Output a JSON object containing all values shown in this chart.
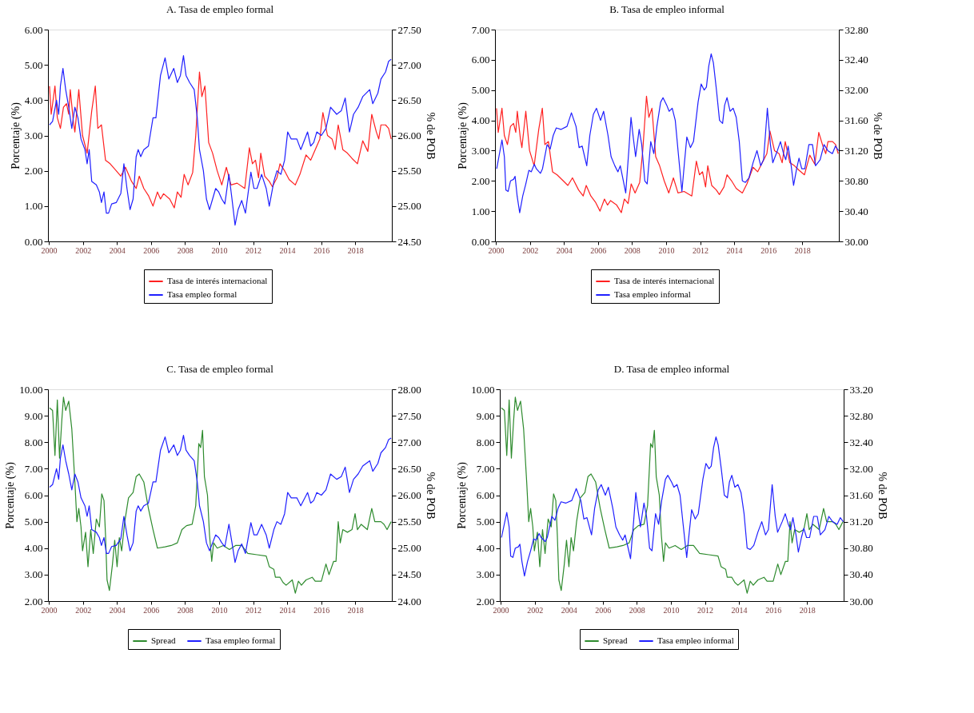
{
  "chart_data": [
    {
      "type": "line",
      "title": "A. Tasa de empleo formal",
      "ylabel": "Porcentaje (%)",
      "y2label": "% de POB",
      "legend": "bottom",
      "xlim": [
        1999.95,
        2020.15
      ],
      "xticks": [
        2000,
        2002,
        2004,
        2006,
        2008,
        2010,
        2012,
        2014,
        2016,
        2018
      ],
      "ylim": [
        0,
        6
      ],
      "yticks": [
        {
          "value": 0,
          "label": "0.00"
        },
        {
          "value": 1,
          "label": "1.00"
        },
        {
          "value": 2,
          "label": "2.00"
        },
        {
          "value": 3,
          "label": "3.00"
        },
        {
          "value": 4,
          "label": "4.00"
        },
        {
          "value": 5,
          "label": "5.00"
        },
        {
          "value": 6,
          "label": "6.00"
        }
      ],
      "y2lim": [
        24.5,
        27.5
      ],
      "y2ticks": [
        {
          "value": 24.5,
          "label": "24.50"
        },
        {
          "value": 25,
          "label": "25.00"
        },
        {
          "value": 25.5,
          "label": "25.50"
        },
        {
          "value": 26,
          "label": "26.00"
        },
        {
          "value": 26.5,
          "label": "26.50"
        },
        {
          "value": 27,
          "label": "27.00"
        },
        {
          "value": 27.5,
          "label": "27.50"
        }
      ],
      "series": [
        {
          "name": "Tasa de interés internacional",
          "color": "#ff2020",
          "axis": "y",
          "x": [
            2000.04,
            2000.14,
            2000.36,
            2000.5,
            2000.68,
            2000.86,
            2001.04,
            2001.17,
            2001.26,
            2001.44,
            2001.53,
            2001.76,
            2001.98,
            2002.25,
            2002.52,
            2002.73,
            2002.88,
            2003.09,
            2003.33,
            2003.6,
            2003.96,
            2004.23,
            2004.5,
            2004.86,
            2005.13,
            2005.31,
            2005.58,
            2005.85,
            2006.12,
            2006.38,
            2006.56,
            2006.74,
            2007.1,
            2007.37,
            2007.55,
            2007.77,
            2007.95,
            2008.18,
            2008.45,
            2008.63,
            2008.85,
            2008.99,
            2009.17,
            2009.39,
            2009.62,
            2009.89,
            2010.16,
            2010.43,
            2010.7,
            2011.06,
            2011.51,
            2011.78,
            2011.96,
            2012.14,
            2012.32,
            2012.45,
            2012.68,
            2012.95,
            2013.13,
            2013.4,
            2013.58,
            2013.85,
            2014.12,
            2014.48,
            2014.75,
            2015.11,
            2015.38,
            2015.65,
            2015.92,
            2016.1,
            2016.37,
            2016.64,
            2016.82,
            2017.0,
            2017.27,
            2017.54,
            2017.81,
            2018.13,
            2018.44,
            2018.74,
            2018.97,
            2019.24,
            2019.38,
            2019.51,
            2019.78,
            2019.96,
            2020.11
          ],
          "values": [
            4.4,
            3.6,
            4.4,
            3.5,
            3.2,
            3.8,
            3.9,
            3.6,
            4.3,
            3.4,
            3.1,
            4.3,
            3.0,
            2.5,
            3.7,
            4.4,
            3.2,
            3.3,
            2.3,
            2.2,
            2.0,
            1.85,
            2.1,
            1.7,
            1.5,
            1.85,
            1.5,
            1.3,
            1.0,
            1.4,
            1.2,
            1.35,
            1.2,
            0.95,
            1.4,
            1.25,
            1.9,
            1.6,
            1.95,
            3.0,
            4.8,
            4.1,
            4.4,
            2.8,
            2.5,
            2.0,
            1.6,
            2.1,
            1.6,
            1.65,
            1.5,
            2.65,
            2.2,
            2.3,
            1.8,
            2.5,
            1.85,
            1.7,
            1.55,
            1.8,
            2.2,
            2.0,
            1.75,
            1.6,
            1.9,
            2.45,
            2.3,
            2.6,
            2.9,
            3.65,
            3.0,
            2.9,
            2.6,
            3.3,
            2.6,
            2.5,
            2.35,
            2.2,
            2.85,
            2.55,
            3.6,
            3.1,
            2.9,
            3.3,
            3.3,
            3.2,
            2.9
          ]
        },
        {
          "name": "Tasa empleo formal",
          "color": "#2020ff",
          "axis": "y2",
          "x": [
            2000.04,
            2000.22,
            2000.45,
            2000.58,
            2000.68,
            2000.83,
            2000.99,
            2001.17,
            2001.35,
            2001.53,
            2001.71,
            2001.89,
            2002.12,
            2002.25,
            2002.37,
            2002.52,
            2002.79,
            2002.97,
            2003.09,
            2003.24,
            2003.38,
            2003.51,
            2003.69,
            2003.96,
            2004.23,
            2004.41,
            2004.59,
            2004.77,
            2004.95,
            2005.13,
            2005.25,
            2005.4,
            2005.58,
            2005.85,
            2006.12,
            2006.29,
            2006.56,
            2006.83,
            2007.05,
            2007.34,
            2007.55,
            2007.73,
            2007.91,
            2008.06,
            2008.27,
            2008.54,
            2008.72,
            2008.85,
            2009.08,
            2009.26,
            2009.44,
            2009.62,
            2009.8,
            2009.98,
            2010.16,
            2010.34,
            2010.58,
            2010.76,
            2010.94,
            2011.12,
            2011.33,
            2011.55,
            2011.87,
            2012.05,
            2012.23,
            2012.5,
            2012.77,
            2012.95,
            2013.22,
            2013.4,
            2013.63,
            2013.85,
            2014.03,
            2014.24,
            2014.57,
            2014.8,
            2015.2,
            2015.38,
            2015.56,
            2015.74,
            2016.01,
            2016.28,
            2016.55,
            2016.91,
            2017.18,
            2017.41,
            2017.66,
            2017.9,
            2018.17,
            2018.44,
            2018.85,
            2019.03,
            2019.33,
            2019.51,
            2019.78,
            2019.96,
            2020.11
          ],
          "values": [
            26.15,
            26.2,
            26.5,
            26.3,
            26.7,
            26.95,
            26.65,
            26.4,
            26.1,
            26.4,
            26.25,
            25.95,
            25.8,
            25.6,
            25.8,
            25.35,
            25.3,
            25.2,
            25.05,
            25.2,
            24.9,
            24.9,
            25.03,
            25.05,
            25.18,
            25.6,
            25.25,
            24.95,
            25.1,
            25.7,
            25.8,
            25.7,
            25.8,
            25.85,
            26.25,
            26.25,
            26.85,
            27.1,
            26.8,
            26.95,
            26.75,
            26.85,
            27.13,
            26.85,
            26.75,
            26.65,
            26.25,
            25.8,
            25.5,
            25.1,
            24.95,
            25.1,
            25.25,
            25.2,
            25.1,
            25.03,
            25.45,
            25.1,
            24.73,
            24.95,
            25.08,
            24.9,
            25.48,
            25.25,
            25.25,
            25.45,
            25.25,
            25.0,
            25.35,
            25.5,
            25.45,
            25.65,
            26.05,
            25.95,
            25.95,
            25.8,
            26.05,
            25.85,
            25.9,
            26.05,
            26.0,
            26.1,
            26.4,
            26.3,
            26.35,
            26.53,
            26.05,
            26.3,
            26.4,
            26.55,
            26.65,
            26.45,
            26.6,
            26.8,
            26.9,
            27.05,
            27.08
          ]
        }
      ]
    },
    {
      "type": "line",
      "title": "B. Tasa de empleo informal",
      "ylabel": "Porcentaje (%)",
      "y2label": "% de POB",
      "legend": "bottom",
      "xlim": [
        1999.95,
        2020.15
      ],
      "xticks": [
        2000,
        2002,
        2004,
        2006,
        2008,
        2010,
        2012,
        2014,
        2016,
        2018
      ],
      "ylim": [
        0,
        7
      ],
      "yticks": [
        {
          "value": 0,
          "label": "0.00"
        },
        {
          "value": 1,
          "label": "1.00"
        },
        {
          "value": 2,
          "label": "2.00"
        },
        {
          "value": 3,
          "label": "3.00"
        },
        {
          "value": 4,
          "label": "4.00"
        },
        {
          "value": 5,
          "label": "5.00"
        },
        {
          "value": 6,
          "label": "6.00"
        },
        {
          "value": 7,
          "label": "7.00"
        }
      ],
      "y2lim": [
        30,
        32.8
      ],
      "y2ticks": [
        {
          "value": 30,
          "label": "30.00"
        },
        {
          "value": 30.4,
          "label": "30.40"
        },
        {
          "value": 30.8,
          "label": "30.80"
        },
        {
          "value": 31.2,
          "label": "31.20"
        },
        {
          "value": 31.6,
          "label": "31.60"
        },
        {
          "value": 32,
          "label": "32.00"
        },
        {
          "value": 32.4,
          "label": "32.40"
        },
        {
          "value": 32.8,
          "label": "32.80"
        }
      ],
      "series": [
        {
          "name": "Tasa de interés internacional",
          "color": "#ff2020",
          "axis": "y",
          "x": [
            2000.04,
            2000.14,
            2000.36,
            2000.5,
            2000.68,
            2000.86,
            2001.04,
            2001.17,
            2001.26,
            2001.44,
            2001.53,
            2001.76,
            2001.98,
            2002.25,
            2002.52,
            2002.73,
            2002.88,
            2003.09,
            2003.33,
            2003.6,
            2003.96,
            2004.23,
            2004.5,
            2004.86,
            2005.13,
            2005.31,
            2005.58,
            2005.85,
            2006.12,
            2006.38,
            2006.56,
            2006.74,
            2007.1,
            2007.37,
            2007.55,
            2007.77,
            2007.95,
            2008.18,
            2008.45,
            2008.63,
            2008.85,
            2008.99,
            2009.17,
            2009.39,
            2009.62,
            2009.89,
            2010.16,
            2010.43,
            2010.7,
            2011.06,
            2011.51,
            2011.78,
            2011.96,
            2012.14,
            2012.32,
            2012.45,
            2012.68,
            2012.95,
            2013.13,
            2013.4,
            2013.58,
            2013.85,
            2014.12,
            2014.48,
            2014.75,
            2015.11,
            2015.38,
            2015.65,
            2015.92,
            2016.1,
            2016.37,
            2016.64,
            2016.82,
            2017.0,
            2017.27,
            2017.54,
            2017.81,
            2018.13,
            2018.44,
            2018.74,
            2018.97,
            2019.24,
            2019.38,
            2019.51,
            2019.78,
            2019.96,
            2020.11
          ],
          "values": [
            4.4,
            3.6,
            4.4,
            3.5,
            3.2,
            3.8,
            3.9,
            3.6,
            4.3,
            3.4,
            3.1,
            4.3,
            3.0,
            2.5,
            3.7,
            4.4,
            3.2,
            3.3,
            2.3,
            2.2,
            2.0,
            1.85,
            2.1,
            1.7,
            1.5,
            1.85,
            1.5,
            1.3,
            1.0,
            1.4,
            1.2,
            1.35,
            1.2,
            0.95,
            1.4,
            1.25,
            1.9,
            1.6,
            1.95,
            3.0,
            4.8,
            4.1,
            4.4,
            2.8,
            2.5,
            2.0,
            1.6,
            2.1,
            1.6,
            1.65,
            1.5,
            2.65,
            2.2,
            2.3,
            1.8,
            2.5,
            1.85,
            1.7,
            1.55,
            1.8,
            2.2,
            2.0,
            1.75,
            1.6,
            1.9,
            2.45,
            2.3,
            2.6,
            2.9,
            3.65,
            3.0,
            2.9,
            2.6,
            3.3,
            2.6,
            2.5,
            2.35,
            2.2,
            2.85,
            2.55,
            3.6,
            3.1,
            2.9,
            3.3,
            3.3,
            3.2,
            2.9
          ]
        },
        {
          "name": "Tasa empleo informal",
          "color": "#2020ff",
          "axis": "y2",
          "x": [
            2000.05,
            2000.18,
            2000.36,
            2000.5,
            2000.59,
            2000.72,
            2000.86,
            2001.04,
            2001.13,
            2001.25,
            2001.4,
            2001.58,
            2001.76,
            2001.94,
            2002.08,
            2002.26,
            2002.38,
            2002.62,
            2002.74,
            2003.01,
            2003.19,
            2003.37,
            2003.55,
            2003.82,
            2004.18,
            2004.44,
            2004.71,
            2004.89,
            2005.07,
            2005.34,
            2005.52,
            2005.73,
            2005.91,
            2006.15,
            2006.33,
            2006.59,
            2006.77,
            2006.99,
            2007.17,
            2007.31,
            2007.49,
            2007.63,
            2007.81,
            2007.94,
            2008.08,
            2008.21,
            2008.42,
            2008.57,
            2008.75,
            2008.89,
            2009.1,
            2009.28,
            2009.46,
            2009.68,
            2009.82,
            2010.04,
            2010.18,
            2010.36,
            2010.54,
            2010.72,
            2010.93,
            2011.08,
            2011.22,
            2011.43,
            2011.61,
            2011.88,
            2012.06,
            2012.24,
            2012.37,
            2012.51,
            2012.65,
            2012.78,
            2012.96,
            2013.14,
            2013.32,
            2013.44,
            2013.58,
            2013.76,
            2013.94,
            2014.12,
            2014.3,
            2014.48,
            2014.66,
            2014.87,
            2015.11,
            2015.34,
            2015.56,
            2015.73,
            2015.95,
            2016.13,
            2016.27,
            2016.54,
            2016.72,
            2016.9,
            2017.03,
            2017.17,
            2017.35,
            2017.49,
            2017.67,
            2017.81,
            2017.97,
            2018.15,
            2018.39,
            2018.6,
            2018.78,
            2019.05,
            2019.28,
            2019.5,
            2019.77,
            2019.95,
            2020.13
          ],
          "values": [
            30.96,
            31.12,
            31.34,
            31.12,
            30.68,
            30.66,
            30.8,
            30.82,
            30.86,
            30.6,
            30.38,
            30.6,
            30.76,
            30.94,
            30.92,
            31.02,
            30.96,
            30.9,
            30.96,
            31.28,
            31.22,
            31.4,
            31.5,
            31.48,
            31.52,
            31.7,
            31.52,
            31.24,
            31.26,
            31.0,
            31.4,
            31.68,
            31.76,
            31.6,
            31.72,
            31.4,
            31.12,
            31.0,
            30.92,
            31.0,
            30.8,
            30.64,
            31.2,
            31.64,
            31.36,
            31.12,
            31.48,
            31.28,
            30.8,
            30.76,
            31.32,
            31.16,
            31.52,
            31.84,
            31.9,
            31.8,
            31.72,
            31.76,
            31.6,
            31.16,
            30.66,
            31.04,
            31.38,
            31.24,
            31.32,
            31.84,
            32.08,
            32.0,
            32.04,
            32.32,
            32.48,
            32.36,
            32.0,
            31.6,
            31.56,
            31.8,
            31.9,
            31.72,
            31.76,
            31.64,
            31.32,
            30.8,
            30.78,
            30.84,
            31.04,
            31.2,
            31.0,
            31.08,
            31.76,
            31.28,
            31.04,
            31.2,
            31.32,
            31.16,
            31.08,
            31.26,
            31.0,
            30.74,
            30.96,
            31.1,
            30.96,
            30.96,
            31.28,
            31.28,
            31.0,
            31.08,
            31.28,
            31.2,
            31.16,
            31.26,
            31.2
          ]
        }
      ]
    },
    {
      "type": "line",
      "title": "C. Tasa de empleo formal",
      "ylabel": "Porcentaje (%)",
      "y2label": "% de POB",
      "legend": "bottom",
      "xlim": [
        1999.95,
        2020.15
      ],
      "xticks": [
        2000,
        2002,
        2004,
        2006,
        2008,
        2010,
        2012,
        2014,
        2016,
        2018
      ],
      "ylim": [
        2,
        10
      ],
      "yticks": [
        {
          "value": 2,
          "label": "2.00"
        },
        {
          "value": 3,
          "label": "3.00"
        },
        {
          "value": 4,
          "label": "4.00"
        },
        {
          "value": 5,
          "label": "5.00"
        },
        {
          "value": 6,
          "label": "6.00"
        },
        {
          "value": 7,
          "label": "7.00"
        },
        {
          "value": 8,
          "label": "8.00"
        },
        {
          "value": 9,
          "label": "9.00"
        },
        {
          "value": 10,
          "label": "10.00"
        }
      ],
      "y2lim": [
        24,
        28
      ],
      "y2ticks": [
        {
          "value": 24,
          "label": "24.00"
        },
        {
          "value": 24.5,
          "label": "24.50"
        },
        {
          "value": 25,
          "label": "25.00"
        },
        {
          "value": 25.5,
          "label": "25.50"
        },
        {
          "value": 26,
          "label": "26.00"
        },
        {
          "value": 26.5,
          "label": "26.50"
        },
        {
          "value": 27,
          "label": "27.00"
        },
        {
          "value": 27.5,
          "label": "27.50"
        },
        {
          "value": 28,
          "label": "28.00"
        }
      ],
      "series": [
        {
          "name": "Spread",
          "color": "#2e8b2e",
          "axis": "y",
          "x": [
            2000.04,
            2000.22,
            2000.36,
            2000.5,
            2000.63,
            2000.76,
            2000.86,
            2000.99,
            2001.17,
            2001.35,
            2001.53,
            2001.65,
            2001.76,
            2001.89,
            2001.98,
            2002.16,
            2002.3,
            2002.46,
            2002.61,
            2002.79,
            2002.97,
            2003.11,
            2003.24,
            2003.33,
            2003.42,
            2003.56,
            2003.74,
            2003.87,
            2004.01,
            2004.14,
            2004.28,
            2004.46,
            2004.68,
            2004.95,
            2005.13,
            2005.31,
            2005.58,
            2005.85,
            2006.12,
            2006.38,
            2006.83,
            2007.19,
            2007.55,
            2007.82,
            2008.09,
            2008.42,
            2008.63,
            2008.81,
            2008.92,
            2009.03,
            2009.14,
            2009.32,
            2009.44,
            2009.57,
            2009.68,
            2009.89,
            2010.25,
            2010.61,
            2010.97,
            2011.33,
            2011.69,
            2012.23,
            2012.77,
            2012.95,
            2013.22,
            2013.31,
            2013.58,
            2013.76,
            2013.94,
            2014.3,
            2014.48,
            2014.66,
            2014.84,
            2015.11,
            2015.47,
            2015.65,
            2016.01,
            2016.28,
            2016.46,
            2016.73,
            2016.87,
            2017.0,
            2017.12,
            2017.27,
            2017.54,
            2017.81,
            2017.99,
            2018.13,
            2018.35,
            2018.71,
            2018.97,
            2019.15,
            2019.51,
            2019.69,
            2019.87,
            2020.11
          ],
          "values": [
            9.3,
            9.2,
            7.5,
            9.6,
            7.4,
            8.8,
            9.7,
            9.2,
            9.55,
            8.5,
            6.5,
            5.0,
            5.5,
            4.8,
            3.9,
            4.6,
            3.3,
            4.7,
            3.8,
            5.1,
            4.8,
            6.05,
            5.8,
            4.5,
            2.8,
            2.4,
            3.4,
            4.3,
            3.3,
            4.4,
            3.9,
            5.0,
            5.9,
            6.1,
            6.7,
            6.8,
            6.5,
            5.5,
            4.7,
            4.0,
            4.05,
            4.1,
            4.2,
            4.7,
            4.85,
            4.9,
            5.6,
            7.95,
            7.8,
            8.45,
            6.7,
            6.0,
            4.5,
            3.5,
            4.2,
            4.0,
            4.1,
            3.95,
            4.1,
            4.1,
            3.8,
            3.75,
            3.7,
            3.3,
            3.2,
            2.9,
            2.9,
            2.7,
            2.6,
            2.8,
            2.3,
            2.75,
            2.6,
            2.8,
            2.9,
            2.75,
            2.75,
            3.4,
            3.0,
            3.5,
            3.5,
            5.0,
            4.2,
            4.7,
            4.6,
            4.7,
            5.3,
            4.7,
            4.9,
            4.7,
            5.5,
            5.0,
            5.0,
            4.9,
            4.7,
            5.0
          ]
        },
        {
          "name": "Tasa empleo formal",
          "color": "#2020ff",
          "axis": "y2",
          "x": [
            2000.04,
            2000.22,
            2000.45,
            2000.58,
            2000.68,
            2000.83,
            2000.99,
            2001.17,
            2001.35,
            2001.53,
            2001.71,
            2001.89,
            2002.12,
            2002.25,
            2002.37,
            2002.52,
            2002.79,
            2002.97,
            2003.09,
            2003.24,
            2003.38,
            2003.51,
            2003.69,
            2003.96,
            2004.23,
            2004.41,
            2004.59,
            2004.77,
            2004.95,
            2005.13,
            2005.25,
            2005.4,
            2005.58,
            2005.85,
            2006.12,
            2006.29,
            2006.56,
            2006.83,
            2007.05,
            2007.34,
            2007.55,
            2007.73,
            2007.91,
            2008.06,
            2008.27,
            2008.54,
            2008.72,
            2008.85,
            2009.08,
            2009.26,
            2009.44,
            2009.62,
            2009.8,
            2009.98,
            2010.16,
            2010.34,
            2010.58,
            2010.76,
            2010.94,
            2011.12,
            2011.33,
            2011.55,
            2011.87,
            2012.05,
            2012.23,
            2012.5,
            2012.77,
            2012.95,
            2013.22,
            2013.4,
            2013.63,
            2013.85,
            2014.03,
            2014.24,
            2014.57,
            2014.8,
            2015.2,
            2015.38,
            2015.56,
            2015.74,
            2016.01,
            2016.28,
            2016.55,
            2016.91,
            2017.18,
            2017.41,
            2017.66,
            2017.9,
            2018.17,
            2018.44,
            2018.85,
            2019.03,
            2019.33,
            2019.51,
            2019.78,
            2019.96,
            2020.11
          ],
          "values": [
            26.15,
            26.2,
            26.5,
            26.3,
            26.7,
            26.95,
            26.65,
            26.4,
            26.1,
            26.4,
            26.25,
            25.95,
            25.8,
            25.6,
            25.8,
            25.35,
            25.3,
            25.2,
            25.05,
            25.2,
            24.9,
            24.9,
            25.03,
            25.05,
            25.18,
            25.6,
            25.25,
            24.95,
            25.1,
            25.7,
            25.8,
            25.7,
            25.8,
            25.85,
            26.25,
            26.25,
            26.85,
            27.1,
            26.8,
            26.95,
            26.75,
            26.85,
            27.13,
            26.85,
            26.75,
            26.65,
            26.25,
            25.8,
            25.5,
            25.1,
            24.95,
            25.1,
            25.25,
            25.2,
            25.1,
            25.03,
            25.45,
            25.1,
            24.73,
            24.95,
            25.08,
            24.9,
            25.48,
            25.25,
            25.25,
            25.45,
            25.25,
            25.0,
            25.35,
            25.5,
            25.45,
            25.65,
            26.05,
            25.95,
            25.95,
            25.8,
            26.05,
            25.85,
            25.9,
            26.05,
            26.0,
            26.1,
            26.4,
            26.3,
            26.35,
            26.53,
            26.05,
            26.3,
            26.4,
            26.55,
            26.65,
            26.45,
            26.6,
            26.8,
            26.9,
            27.05,
            27.08
          ]
        }
      ]
    },
    {
      "type": "line",
      "title": "D. Tasa de empleo informal",
      "ylabel": "Porcentaje (%)",
      "y2label": "% de POB",
      "legend": "bottom",
      "xlim": [
        1999.95,
        2020.15
      ],
      "xticks": [
        2000,
        2002,
        2004,
        2006,
        2008,
        2010,
        2012,
        2014,
        2016,
        2018
      ],
      "ylim": [
        2,
        10
      ],
      "yticks": [
        {
          "value": 2,
          "label": "2.00"
        },
        {
          "value": 3,
          "label": "3.00"
        },
        {
          "value": 4,
          "label": "4.00"
        },
        {
          "value": 5,
          "label": "5.00"
        },
        {
          "value": 6,
          "label": "6.00"
        },
        {
          "value": 7,
          "label": "7.00"
        },
        {
          "value": 8,
          "label": "8.00"
        },
        {
          "value": 9,
          "label": "9.00"
        },
        {
          "value": 10,
          "label": "10.00"
        }
      ],
      "y2lim": [
        30,
        33.2
      ],
      "y2ticks": [
        {
          "value": 30,
          "label": "30.00"
        },
        {
          "value": 30.4,
          "label": "30.40"
        },
        {
          "value": 30.8,
          "label": "30.80"
        },
        {
          "value": 31.2,
          "label": "31.20"
        },
        {
          "value": 31.6,
          "label": "31.60"
        },
        {
          "value": 32,
          "label": "32.00"
        },
        {
          "value": 32.4,
          "label": "32.40"
        },
        {
          "value": 32.8,
          "label": "32.80"
        },
        {
          "value": 33.2,
          "label": "33.20"
        }
      ],
      "series": [
        {
          "name": "Spread",
          "color": "#2e8b2e",
          "axis": "y",
          "x": [
            2000.04,
            2000.22,
            2000.36,
            2000.5,
            2000.63,
            2000.76,
            2000.86,
            2000.99,
            2001.17,
            2001.35,
            2001.53,
            2001.65,
            2001.76,
            2001.89,
            2001.98,
            2002.16,
            2002.3,
            2002.46,
            2002.61,
            2002.79,
            2002.97,
            2003.11,
            2003.24,
            2003.33,
            2003.42,
            2003.56,
            2003.74,
            2003.87,
            2004.01,
            2004.14,
            2004.28,
            2004.46,
            2004.68,
            2004.95,
            2005.13,
            2005.31,
            2005.58,
            2005.85,
            2006.12,
            2006.38,
            2006.83,
            2007.19,
            2007.55,
            2007.82,
            2008.09,
            2008.42,
            2008.63,
            2008.81,
            2008.92,
            2009.03,
            2009.14,
            2009.32,
            2009.44,
            2009.57,
            2009.68,
            2009.89,
            2010.25,
            2010.61,
            2010.97,
            2011.33,
            2011.69,
            2012.23,
            2012.77,
            2012.95,
            2013.22,
            2013.31,
            2013.58,
            2013.76,
            2013.94,
            2014.3,
            2014.48,
            2014.66,
            2014.84,
            2015.11,
            2015.47,
            2015.65,
            2016.01,
            2016.28,
            2016.46,
            2016.73,
            2016.87,
            2017.0,
            2017.12,
            2017.27,
            2017.54,
            2017.81,
            2017.99,
            2018.13,
            2018.35,
            2018.71,
            2018.97,
            2019.15,
            2019.51,
            2019.69,
            2019.87,
            2020.11
          ],
          "values": [
            9.3,
            9.2,
            7.5,
            9.6,
            7.4,
            8.8,
            9.7,
            9.2,
            9.55,
            8.5,
            6.5,
            5.0,
            5.5,
            4.8,
            3.9,
            4.6,
            3.3,
            4.7,
            3.8,
            5.1,
            4.8,
            6.05,
            5.8,
            4.5,
            2.8,
            2.4,
            3.4,
            4.3,
            3.3,
            4.4,
            3.9,
            5.0,
            5.9,
            6.1,
            6.7,
            6.8,
            6.5,
            5.5,
            4.7,
            4.0,
            4.05,
            4.1,
            4.2,
            4.7,
            4.85,
            4.9,
            5.6,
            7.95,
            7.8,
            8.45,
            6.7,
            6.0,
            4.5,
            3.5,
            4.2,
            4.0,
            4.1,
            3.95,
            4.1,
            4.1,
            3.8,
            3.75,
            3.7,
            3.3,
            3.2,
            2.9,
            2.9,
            2.7,
            2.6,
            2.8,
            2.3,
            2.75,
            2.6,
            2.8,
            2.9,
            2.75,
            2.75,
            3.4,
            3.0,
            3.5,
            3.5,
            5.0,
            4.2,
            4.7,
            4.6,
            4.7,
            5.3,
            4.7,
            4.9,
            4.7,
            5.5,
            5.0,
            5.0,
            4.9,
            4.7,
            5.0
          ]
        },
        {
          "name": "Tasa empleo informal",
          "color": "#2020ff",
          "axis": "y2",
          "x": [
            2000.05,
            2000.18,
            2000.36,
            2000.5,
            2000.59,
            2000.72,
            2000.86,
            2001.04,
            2001.13,
            2001.25,
            2001.4,
            2001.58,
            2001.76,
            2001.94,
            2002.08,
            2002.26,
            2002.38,
            2002.62,
            2002.74,
            2003.01,
            2003.19,
            2003.37,
            2003.55,
            2003.82,
            2004.18,
            2004.44,
            2004.71,
            2004.89,
            2005.07,
            2005.34,
            2005.52,
            2005.73,
            2005.91,
            2006.15,
            2006.33,
            2006.59,
            2006.77,
            2006.99,
            2007.17,
            2007.31,
            2007.49,
            2007.63,
            2007.81,
            2007.94,
            2008.08,
            2008.21,
            2008.42,
            2008.57,
            2008.75,
            2008.89,
            2009.1,
            2009.28,
            2009.46,
            2009.68,
            2009.82,
            2010.04,
            2010.18,
            2010.36,
            2010.54,
            2010.72,
            2010.93,
            2011.08,
            2011.22,
            2011.43,
            2011.61,
            2011.88,
            2012.06,
            2012.24,
            2012.37,
            2012.51,
            2012.65,
            2012.78,
            2012.96,
            2013.14,
            2013.32,
            2013.44,
            2013.58,
            2013.76,
            2013.94,
            2014.12,
            2014.3,
            2014.48,
            2014.66,
            2014.87,
            2015.11,
            2015.34,
            2015.56,
            2015.73,
            2015.95,
            2016.13,
            2016.27,
            2016.54,
            2016.72,
            2016.9,
            2017.03,
            2017.17,
            2017.35,
            2017.49,
            2017.67,
            2017.81,
            2017.97,
            2018.15,
            2018.39,
            2018.6,
            2018.78,
            2019.05,
            2019.28,
            2019.5,
            2019.77,
            2019.95,
            2020.13
          ],
          "values": [
            30.96,
            31.12,
            31.34,
            31.12,
            30.68,
            30.66,
            30.8,
            30.82,
            30.86,
            30.6,
            30.38,
            30.6,
            30.76,
            30.94,
            30.92,
            31.02,
            30.96,
            30.9,
            30.96,
            31.28,
            31.22,
            31.4,
            31.5,
            31.48,
            31.52,
            31.7,
            31.52,
            31.24,
            31.26,
            31.0,
            31.4,
            31.68,
            31.76,
            31.6,
            31.72,
            31.4,
            31.12,
            31.0,
            30.92,
            31.0,
            30.8,
            30.64,
            31.2,
            31.64,
            31.36,
            31.12,
            31.48,
            31.28,
            30.8,
            30.76,
            31.32,
            31.16,
            31.52,
            31.84,
            31.9,
            31.8,
            31.72,
            31.76,
            31.6,
            31.16,
            30.66,
            31.04,
            31.38,
            31.24,
            31.32,
            31.84,
            32.08,
            32.0,
            32.04,
            32.32,
            32.48,
            32.36,
            32.0,
            31.6,
            31.56,
            31.8,
            31.9,
            31.72,
            31.76,
            31.64,
            31.32,
            30.8,
            30.78,
            30.84,
            31.04,
            31.2,
            31.0,
            31.08,
            31.76,
            31.28,
            31.04,
            31.2,
            31.32,
            31.16,
            31.08,
            31.26,
            31.0,
            30.74,
            30.96,
            31.1,
            30.96,
            30.96,
            31.28,
            31.28,
            31.0,
            31.08,
            31.28,
            31.2,
            31.16,
            31.26,
            31.2
          ]
        }
      ]
    }
  ]
}
